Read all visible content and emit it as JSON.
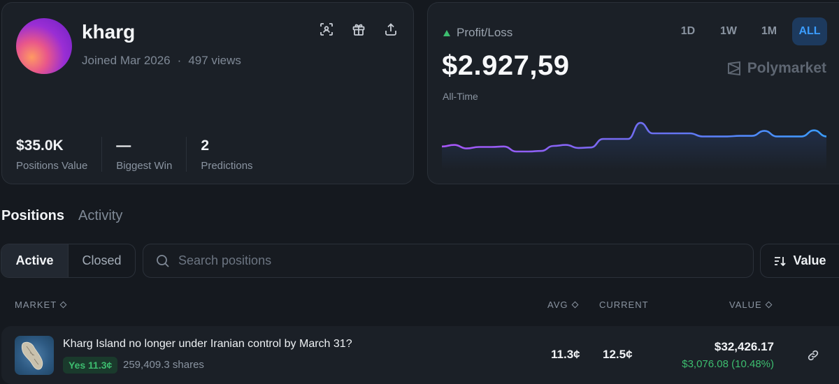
{
  "profile": {
    "username": "kharg",
    "joined": "Joined Mar 2026",
    "views": "497 views",
    "stats": [
      {
        "value": "$35.0K",
        "label": "Positions Value"
      },
      {
        "value": "—",
        "label": "Biggest Win"
      },
      {
        "value": "2",
        "label": "Predictions"
      }
    ],
    "icons": [
      "scan-icon",
      "gift-icon",
      "share-icon"
    ]
  },
  "pnl": {
    "label": "Profit/Loss",
    "value": "$2.927,59",
    "period": "All-Time",
    "ranges": [
      "1D",
      "1W",
      "1M",
      "ALL"
    ],
    "active_range": "ALL",
    "brand": "Polymarket",
    "colors": {
      "up": "#3dbd6f",
      "line_start": "#a855f7",
      "line_end": "#3b9dff"
    }
  },
  "chart_data": {
    "type": "line",
    "y": [
      4.2,
      4.5,
      3.8,
      4.1,
      4.1,
      4.2,
      3.2,
      3.2,
      3.3,
      4.3,
      4.5,
      3.9,
      4.0,
      5.7,
      5.7,
      5.7,
      8.9,
      6.8,
      6.8,
      6.8,
      6.8,
      6.2,
      6.2,
      6.2,
      6.3,
      6.3,
      7.3,
      6.2,
      6.2,
      6.2,
      7.4,
      6.2
    ],
    "ylim": [
      0,
      10
    ]
  },
  "tabs": [
    {
      "label": "Positions",
      "active": true
    },
    {
      "label": "Activity",
      "active": false
    }
  ],
  "filters": {
    "segments": [
      "Active",
      "Closed"
    ],
    "active_segment": "Active",
    "search_placeholder": "Search positions",
    "sort_label": "Value"
  },
  "table": {
    "headers": {
      "market": "MARKET",
      "avg": "AVG",
      "current": "CURRENT",
      "value": "VALUE"
    },
    "rows": [
      {
        "question": "Kharg Island no longer under Iranian control by March 31?",
        "outcome": "Yes 11.3¢",
        "shares": "259,409.3 shares",
        "avg": "11.3¢",
        "current": "12.5¢",
        "value": "$32,426.17",
        "pnl": "$3,076.08 (10.48%)"
      }
    ]
  }
}
